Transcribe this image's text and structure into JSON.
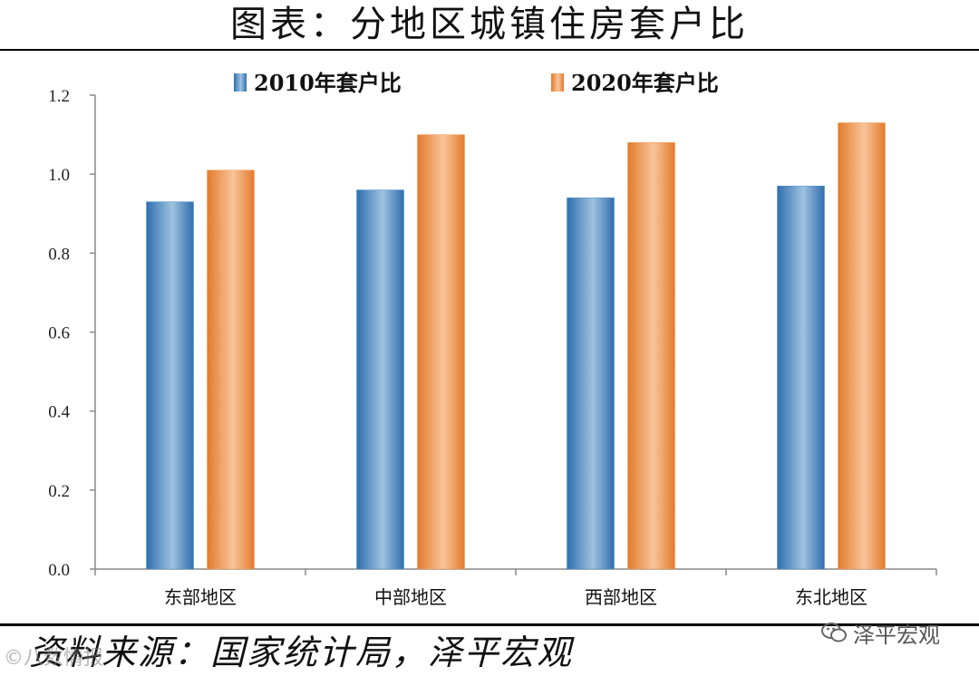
{
  "title": "图表：分地区城镇住房套户比",
  "source": "资料来源：国家统计局，泽平宏观",
  "watermark_right": "泽平宏观",
  "watermark_left": "©八数情报",
  "chart_data": {
    "type": "bar",
    "categories": [
      "东部地区",
      "中部地区",
      "西部地区",
      "东北地区"
    ],
    "series": [
      {
        "name": "2010年套户比",
        "values": [
          0.93,
          0.96,
          0.94,
          0.97
        ],
        "color": "#4a8fc8"
      },
      {
        "name": "2020年套户比",
        "values": [
          1.01,
          1.1,
          1.08,
          1.13
        ],
        "color": "#ef9a5a"
      }
    ],
    "yticks": [
      "0.0",
      "0.2",
      "0.4",
      "0.6",
      "0.8",
      "1.0",
      "1.2"
    ],
    "ylim": [
      0,
      1.2
    ],
    "grid": false,
    "legend_position": "top"
  }
}
